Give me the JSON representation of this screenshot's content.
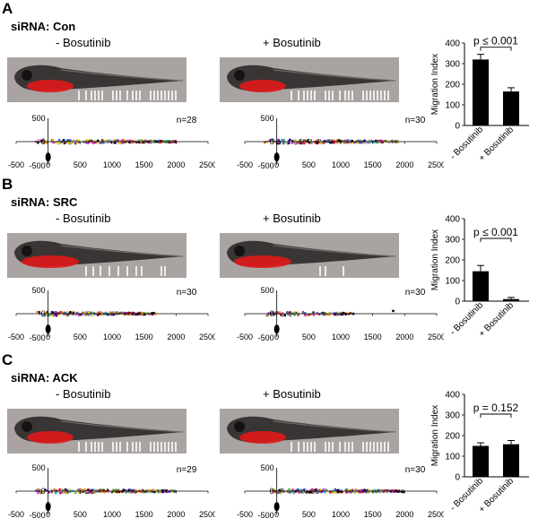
{
  "panels": [
    {
      "letter": "A",
      "sirna_label": "siRNA: Con",
      "conditions": [
        {
          "label": "- Bosutinib",
          "n": "n=28"
        },
        {
          "label": "+ Bosutinib",
          "n": "n=30"
        }
      ],
      "scatter_axes": {
        "x_ticks": [
          "-500",
          "0",
          "500",
          "1000",
          "1500",
          "2000",
          "2500"
        ],
        "y_ticks": [
          "500",
          "0",
          "-500"
        ]
      },
      "chart_data": {
        "type": "bar",
        "categories": [
          "- Bosutinib",
          "+ Bosutinib"
        ],
        "values": [
          320,
          165
        ],
        "errors": [
          25,
          18
        ],
        "ylabel": "Migration Index",
        "ylim": [
          0,
          400
        ],
        "yticks": [
          "0",
          "100",
          "200",
          "300",
          "400"
        ],
        "annotation": "p ≤ 0.001"
      }
    },
    {
      "letter": "B",
      "sirna_label": "siRNA: SRC",
      "conditions": [
        {
          "label": "- Bosutinib",
          "n": "n=30"
        },
        {
          "label": "+ Bosutinib",
          "n": "n=30"
        }
      ],
      "scatter_axes": {
        "x_ticks": [
          "-500",
          "0",
          "500",
          "1000",
          "1500",
          "2000",
          "2500"
        ],
        "y_ticks": [
          "500",
          "0",
          "-500"
        ]
      },
      "chart_data": {
        "type": "bar",
        "categories": [
          "- Bosutinib",
          "+ Bosutinib"
        ],
        "values": [
          145,
          10
        ],
        "errors": [
          28,
          8
        ],
        "ylabel": "Migration Index",
        "ylim": [
          0,
          400
        ],
        "yticks": [
          "0",
          "100",
          "200",
          "300",
          "400"
        ],
        "annotation": "p ≤ 0.001"
      }
    },
    {
      "letter": "C",
      "sirna_label": "siRNA: ACK",
      "conditions": [
        {
          "label": "- Bosutinib",
          "n": "n=29"
        },
        {
          "label": "+ Bosutinib",
          "n": "n=30"
        }
      ],
      "scatter_axes": {
        "x_ticks": [
          "-500",
          "0",
          "500",
          "1000",
          "1500",
          "2000",
          "2500"
        ],
        "y_ticks": [
          "500",
          "0",
          "-500"
        ]
      },
      "chart_data": {
        "type": "bar",
        "categories": [
          "- Bosutinib",
          "+ Bosutinib"
        ],
        "values": [
          150,
          158
        ],
        "errors": [
          15,
          18
        ],
        "ylabel": "Migration Index",
        "ylim": [
          0,
          400
        ],
        "yticks": [
          "0",
          "100",
          "200",
          "300",
          "400"
        ],
        "annotation": "p = 0.152"
      }
    }
  ]
}
